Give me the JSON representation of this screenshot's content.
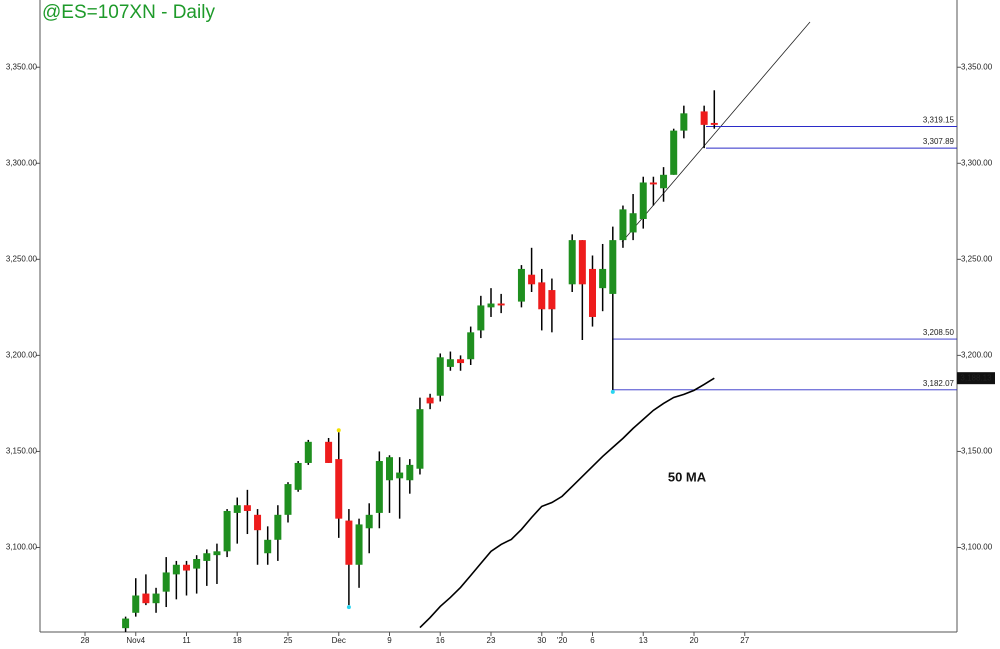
{
  "chart_data": {
    "type": "candlestick",
    "title": "@ES=107XN - Daily",
    "categories": [
      "28",
      null,
      null,
      null,
      null,
      "Nov4",
      null,
      null,
      null,
      null,
      "11",
      null,
      null,
      null,
      null,
      "18",
      null,
      null,
      null,
      null,
      "25",
      null,
      null,
      null,
      null,
      "Dec",
      null,
      null,
      null,
      null,
      "9",
      null,
      null,
      null,
      null,
      "16",
      null,
      null,
      null,
      null,
      "23",
      null,
      null,
      null,
      null,
      "30",
      null,
      "'20",
      null,
      null,
      "6",
      null,
      null,
      null,
      null,
      "13",
      null,
      null,
      null,
      null,
      "20",
      null,
      null,
      null,
      null,
      "27"
    ],
    "open": [
      null,
      null,
      null,
      null,
      3058,
      3066,
      3076,
      3071,
      3077,
      3086,
      3091,
      3089,
      3093,
      3096,
      3098,
      3118,
      3122,
      3117,
      3097,
      3104,
      3117,
      3130,
      3144,
      null,
      3155,
      3146,
      3114,
      3091,
      3110,
      3118,
      3135,
      3136,
      3135,
      3141,
      3178,
      3179,
      3194,
      3198,
      3198,
      3213,
      3225,
      3227,
      null,
      3228,
      3242,
      3238,
      3234,
      null,
      3237,
      3260,
      3245,
      3235,
      3232,
      3260,
      3264,
      3271,
      3290,
      3287,
      3294,
      3317,
      null,
      3327,
      3321,
      null,
      null,
      null
    ],
    "high": [
      null,
      null,
      null,
      null,
      3064,
      3084,
      3086,
      3079,
      3095,
      3093,
      3093,
      3096,
      3099,
      3102,
      3120,
      3126,
      3130,
      3120,
      3111,
      3122,
      3134,
      3145,
      3156,
      null,
      3157,
      3160,
      3120,
      3115,
      3123,
      3150,
      3148,
      3147,
      3146,
      3178,
      3180,
      3201,
      3202,
      3200,
      3215,
      3231,
      3235,
      3232,
      null,
      3247,
      3256,
      3245,
      3240,
      null,
      3263,
      3260,
      3252,
      3258,
      3267,
      3278,
      3284,
      3293,
      3293,
      3298,
      3318,
      3330,
      null,
      3330,
      3338,
      null,
      null,
      null
    ],
    "low": [
      null,
      null,
      null,
      null,
      3056,
      3064,
      3070,
      3066,
      3069,
      3073,
      3075,
      3076,
      3080,
      3081,
      3095,
      3102,
      3107,
      3091,
      3091,
      3093,
      3113,
      3129,
      3143,
      null,
      3144,
      3105,
      3070,
      3079,
      3097,
      3110,
      3118,
      3115,
      3128,
      3138,
      3172,
      3176,
      3192,
      3192,
      3195,
      3209,
      3220,
      3222,
      null,
      3225,
      3233,
      3213,
      3212,
      null,
      3233,
      3208,
      3215,
      3223,
      3182.07,
      3256,
      3260,
      3266,
      3278,
      3280,
      3294,
      3313,
      null,
      3307.89,
      3318,
      null,
      null,
      null
    ],
    "close": [
      null,
      null,
      null,
      null,
      3063,
      3075,
      3071,
      3076,
      3087,
      3091,
      3088,
      3094,
      3097,
      3098,
      3119,
      3122,
      3119,
      3109,
      3104,
      3117,
      3133,
      3144,
      3155,
      null,
      3144,
      3115,
      3091,
      3112,
      3117,
      3145,
      3147,
      3139,
      3143,
      3172,
      3175,
      3199,
      3198,
      3196,
      3212,
      3226,
      3227,
      3226,
      null,
      3245,
      3237,
      3224,
      3224,
      null,
      3260,
      3237,
      3220,
      3245,
      3260,
      3276,
      3274,
      3290,
      3289,
      3294,
      3317,
      3326,
      null,
      3320,
      3320,
      null,
      null,
      null
    ],
    "up_color": "#1f8f1f",
    "down_color": "#ee1c1c",
    "series": [
      {
        "name": "50 MA",
        "color": "#000000",
        "values": [
          null,
          null,
          null,
          null,
          null,
          null,
          null,
          null,
          null,
          null,
          null,
          null,
          null,
          null,
          null,
          null,
          null,
          null,
          null,
          null,
          null,
          null,
          null,
          null,
          null,
          null,
          null,
          null,
          null,
          null,
          null,
          null,
          null,
          3058.3,
          3063.5,
          3069.3,
          3074,
          3079.2,
          3085.4,
          3091.7,
          3098,
          3101.6,
          3104.2,
          3109.4,
          3115.6,
          3121.4,
          3123.4,
          3126.6,
          3131.8,
          3137,
          3142.2,
          3147.4,
          3152.1,
          3156.8,
          3162,
          3166.7,
          3171.4,
          3175,
          3178.1,
          3179.7,
          3181.8,
          3184.9,
          3188.13,
          null,
          null,
          null
        ],
        "value_labels": [
          null,
          null,
          null,
          null,
          null,
          null,
          null,
          null,
          null,
          null,
          null,
          null,
          null,
          null,
          null,
          null,
          null,
          null,
          null,
          null,
          null,
          null,
          null,
          null,
          null,
          null,
          null,
          null,
          null,
          null,
          null,
          null,
          null,
          null,
          null,
          null,
          null,
          null,
          null,
          null,
          null,
          null,
          null,
          null,
          null,
          null,
          null,
          null,
          null,
          null,
          null,
          null,
          null,
          null,
          null,
          null,
          null,
          null,
          null,
          null,
          null,
          null,
          "3,188.13",
          null,
          null,
          null
        ]
      }
    ],
    "levels": [
      {
        "value": 3319.15,
        "label": "3,319.15"
      },
      {
        "value": 3307.89,
        "label": "3,307.89"
      },
      {
        "value": 3208.5,
        "label": "3,208.50"
      },
      {
        "value": 3182.07,
        "label": "3,182.07"
      }
    ],
    "level_color": "#2b2bc8",
    "ylim": [
      3056,
      3385
    ],
    "yticks": [
      {
        "value": 3100,
        "label": "3,100.00"
      },
      {
        "value": 3150,
        "label": "3,150.00"
      },
      {
        "value": 3200,
        "label": "3,200.00"
      },
      {
        "value": 3250,
        "label": "3,250.00"
      },
      {
        "value": 3300,
        "label": "3,300.00"
      },
      {
        "value": 3350,
        "label": "3,350.00"
      }
    ]
  }
}
